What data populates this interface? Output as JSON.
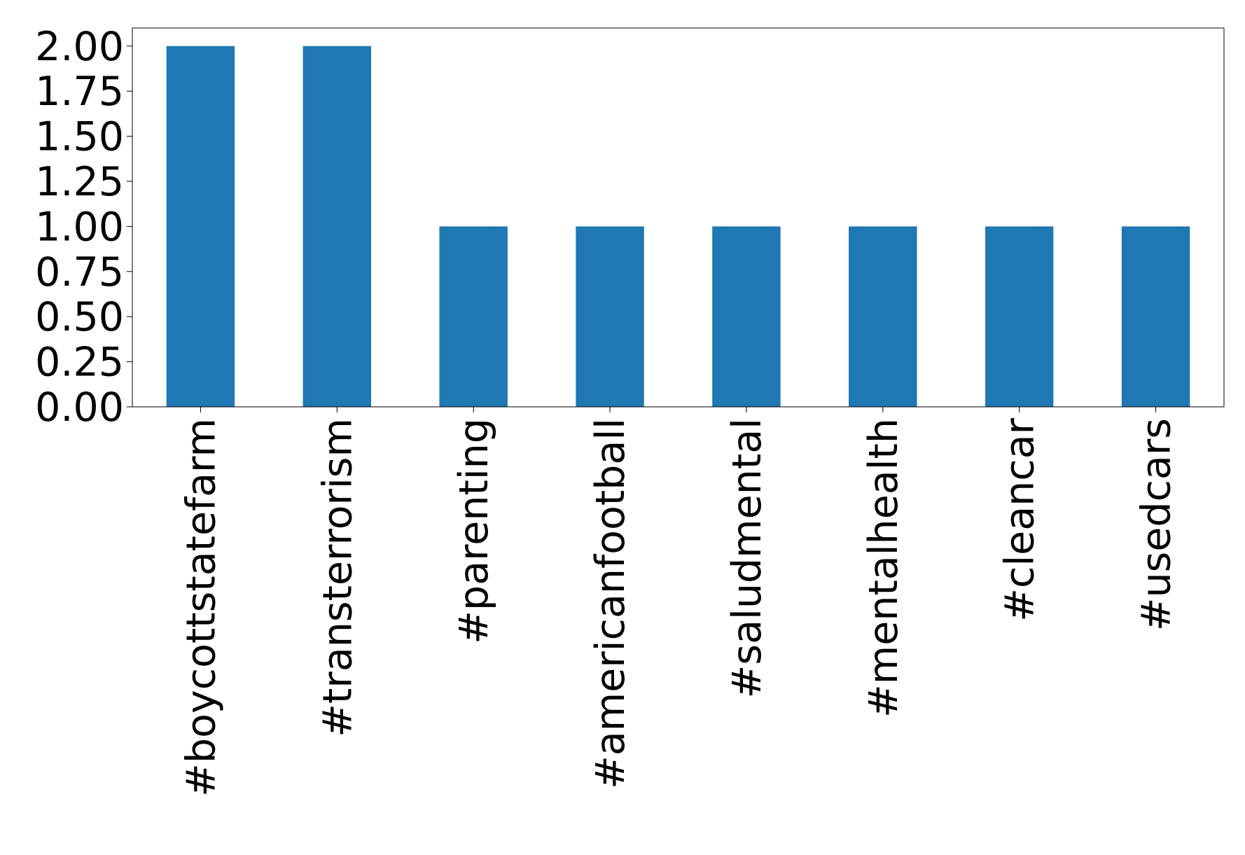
{
  "chart_data": {
    "type": "bar",
    "categories": [
      "#boycottstatefarm",
      "#transterrorism",
      "#parenting",
      "#americanfootball",
      "#saludmental",
      "#mentalhealth",
      "#cleancar",
      "#usedcars"
    ],
    "values": [
      2,
      2,
      1,
      1,
      1,
      1,
      1,
      1
    ],
    "color": "#1f77b4",
    "ylim": [
      0,
      2.1
    ],
    "yticks": [
      {
        "value": 0,
        "label": "0.00"
      },
      {
        "value": 0.25,
        "label": "0.25"
      },
      {
        "value": 0.5,
        "label": "0.50"
      },
      {
        "value": 0.75,
        "label": "0.75"
      },
      {
        "value": 1,
        "label": "1.00"
      },
      {
        "value": 1.25,
        "label": "1.25"
      },
      {
        "value": 1.5,
        "label": "1.50"
      },
      {
        "value": 1.75,
        "label": "1.75"
      },
      {
        "value": 2,
        "label": "2.00"
      }
    ],
    "grid": false
  }
}
